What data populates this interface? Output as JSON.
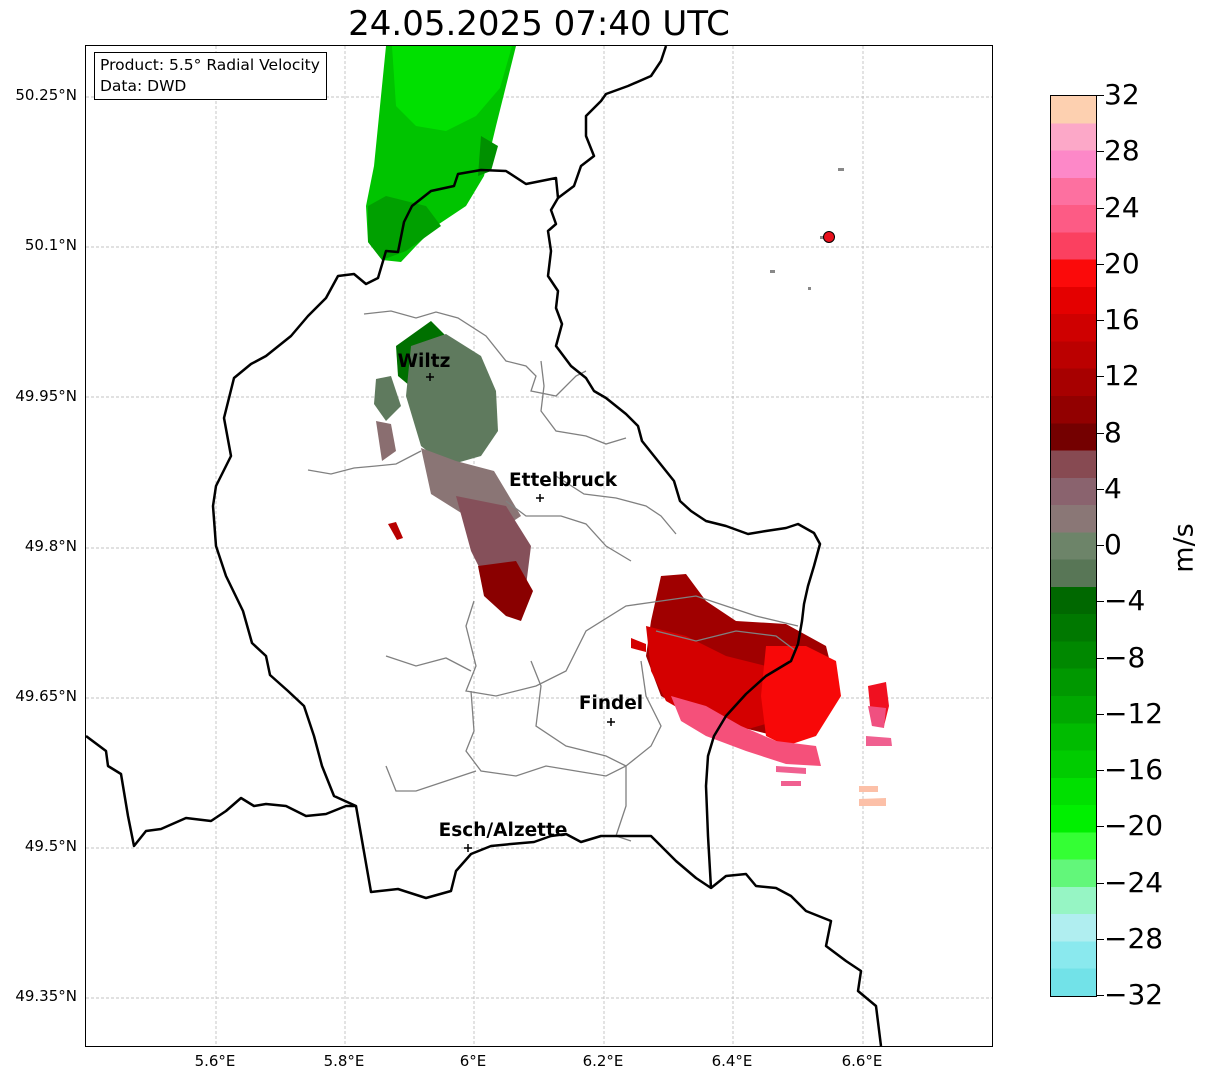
{
  "title": "24.05.2025 07:40 UTC",
  "info": {
    "product": "Product: 5.5° Radial Velocity",
    "source": "Data: DWD"
  },
  "lat_labels": [
    "50.25°N",
    "50.1°N",
    "49.95°N",
    "49.8°N",
    "49.65°N",
    "49.5°N",
    "49.35°N"
  ],
  "lon_labels": [
    "5.6°E",
    "5.8°E",
    "6°E",
    "6.2°E",
    "6.4°E",
    "6.6°E"
  ],
  "cities": [
    {
      "name": "Wiltz",
      "lon": 5.93,
      "lat": 49.968
    },
    {
      "name": "Ettelbruck",
      "lon": 6.1,
      "lat": 49.849
    },
    {
      "name": "Findel",
      "lon": 6.21,
      "lat": 49.627
    },
    {
      "name": "Esch/Alzette",
      "lon": 5.99,
      "lat": 49.498
    }
  ],
  "radar_site": {
    "lon": 6.548,
    "lat": 50.11,
    "color": "#e8101c"
  },
  "colorbar": {
    "unit": "m/s",
    "min": -32,
    "max": 32,
    "tick_labels": [
      "32",
      "28",
      "24",
      "20",
      "16",
      "12",
      "8",
      "4",
      "0",
      "−24",
      "−28",
      "−32"
    ],
    "tick_labels_full": [
      "32",
      "28",
      "24",
      "20",
      "16",
      "12",
      "8",
      "4",
      "0",
      "−4",
      "−8",
      "−12",
      "−16",
      "−20",
      "−24",
      "−28",
      "−32"
    ],
    "colors_top_to_bottom": [
      "#fdd0b0",
      "#fca8c8",
      "#fd88c8",
      "#fd70a0",
      "#fd5b85",
      "#fb4060",
      "#fb0a0a",
      "#e40000",
      "#cf0000",
      "#bb0000",
      "#a70000",
      "#920000",
      "#740000",
      "#874a52",
      "#8a636e",
      "#8a7776",
      "#6d8469",
      "#587656",
      "#006800",
      "#007800",
      "#008800",
      "#009800",
      "#00a800",
      "#00bb00",
      "#00cc00",
      "#00e000",
      "#00f000",
      "#34ff34",
      "#62f77a",
      "#96f5c4",
      "#b0eef0",
      "#8ae9ee",
      "#72e2e8"
    ]
  },
  "map_extent": {
    "lon_min": 5.4,
    "lon_max": 6.8,
    "lat_min": 49.3,
    "lat_max": 50.3
  }
}
